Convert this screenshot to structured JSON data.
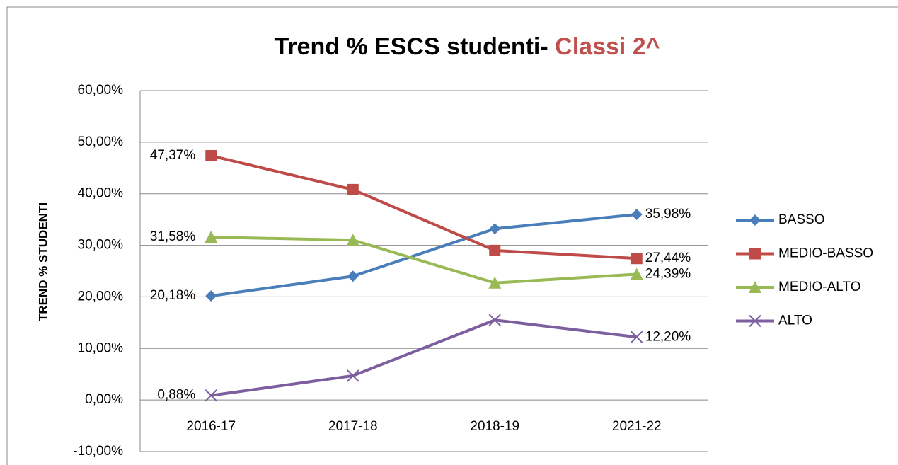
{
  "chart_data": {
    "type": "line",
    "title": "Trend % ESCS studenti-",
    "title_highlight": "Classi 2^",
    "title_highlight_color": "#c0504d",
    "y_label": "TREND % STUDENTI",
    "categories": [
      "2016-17",
      "2017-18",
      "2018-19",
      "2021-22"
    ],
    "series": [
      {
        "name": "BASSO",
        "color": "#4a7ebb",
        "marker": "diamond",
        "values": [
          20.18,
          24.0,
          33.2,
          35.98
        ],
        "value_labels": [
          "20,18%",
          null,
          null,
          "35,98%"
        ]
      },
      {
        "name": "MEDIO-BASSO",
        "color": "#be4b48",
        "marker": "square",
        "values": [
          47.37,
          40.8,
          29.0,
          27.44
        ],
        "value_labels": [
          "47,37%",
          null,
          null,
          "27,44%"
        ]
      },
      {
        "name": "MEDIO-ALTO",
        "color": "#98b954",
        "marker": "triangle",
        "values": [
          31.58,
          31.0,
          22.7,
          24.39
        ],
        "value_labels": [
          "31,58%",
          null,
          null,
          "24,39%"
        ]
      },
      {
        "name": "ALTO",
        "color": "#7d5fa0",
        "marker": "x",
        "values": [
          0.88,
          4.7,
          15.5,
          12.2
        ],
        "value_labels": [
          "0,88%",
          null,
          null,
          "12,20%"
        ]
      }
    ],
    "ylim": [
      -10,
      60
    ],
    "yticks": [
      {
        "value": -10,
        "label": "-10,00%"
      },
      {
        "value": 0,
        "label": "0,00%"
      },
      {
        "value": 10,
        "label": "10,00%"
      },
      {
        "value": 20,
        "label": "20,00%"
      },
      {
        "value": 30,
        "label": "30,00%"
      },
      {
        "value": 40,
        "label": "40,00%"
      },
      {
        "value": 50,
        "label": "50,00%"
      },
      {
        "value": 60,
        "label": "60,00%"
      }
    ],
    "grid": true,
    "legend": "right"
  }
}
